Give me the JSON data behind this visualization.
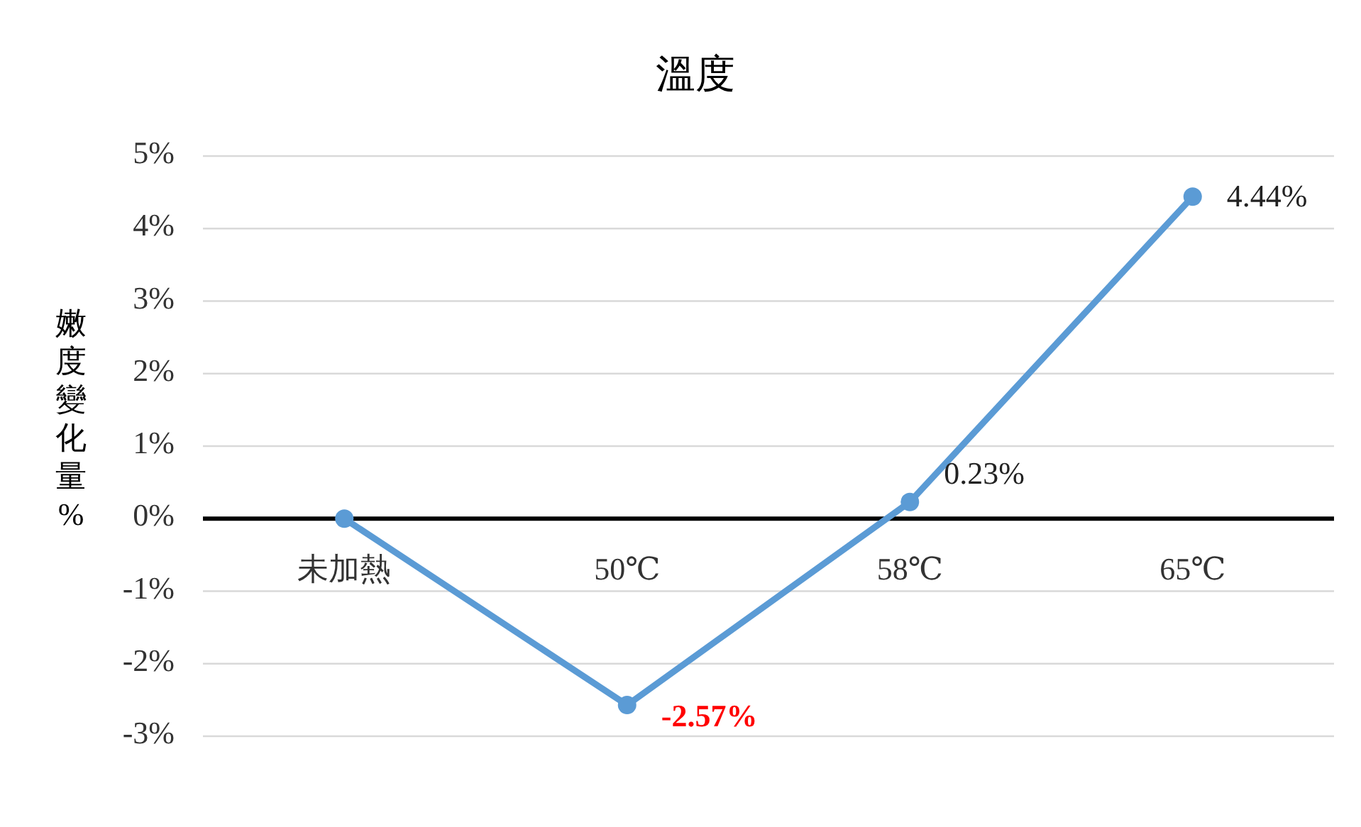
{
  "chart_data": {
    "type": "line",
    "title": "溫度",
    "ylabel": "嫩度變化量%",
    "categories": [
      "未加熱",
      "50℃",
      "58℃",
      "65℃"
    ],
    "series": [
      {
        "color": "#5b9bd5",
        "values": [
          0,
          -2.57,
          0.23,
          4.44
        ],
        "value_labels": [
          null,
          "-2.57%",
          "0.23%",
          "4.44%"
        ]
      }
    ],
    "ylim": [
      -3,
      5
    ],
    "yticks": [
      {
        "value": -3,
        "label": "-3%"
      },
      {
        "value": -2,
        "label": "-2%"
      },
      {
        "value": -1,
        "label": "-1%"
      },
      {
        "value": 0,
        "label": "0%"
      },
      {
        "value": 1,
        "label": "1%"
      },
      {
        "value": 2,
        "label": "2%"
      },
      {
        "value": 3,
        "label": "3%"
      },
      {
        "value": 4,
        "label": "4%"
      },
      {
        "value": 5,
        "label": "5%"
      }
    ],
    "grid": "y",
    "marker": "circle",
    "line_style": "solid"
  }
}
